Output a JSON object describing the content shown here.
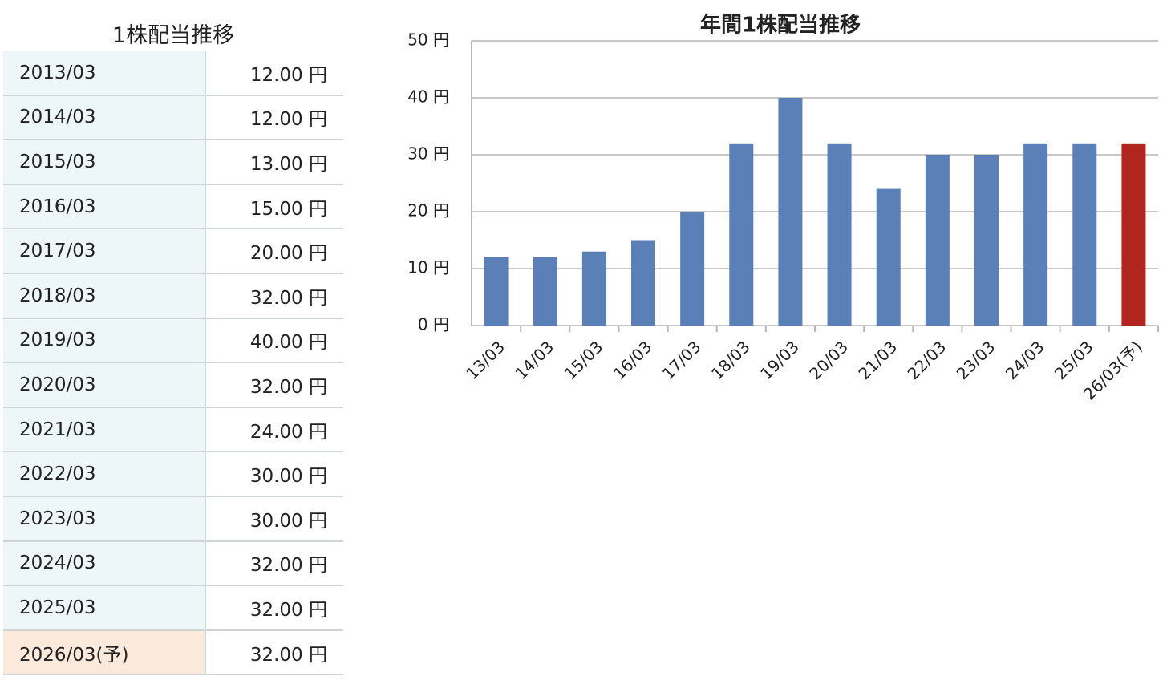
{
  "table": {
    "title": "1株配当推移",
    "rows": [
      [
        "2013/03",
        "12.00 円"
      ],
      [
        "2014/03",
        "12.00 円"
      ],
      [
        "2015/03",
        "13.00 円"
      ],
      [
        "2016/03",
        "15.00 円"
      ],
      [
        "2017/03",
        "20.00 円"
      ],
      [
        "2018/03",
        "32.00 円"
      ],
      [
        "2019/03",
        "40.00 円"
      ],
      [
        "2020/03",
        "32.00 円"
      ],
      [
        "2021/03",
        "24.00 円"
      ],
      [
        "2022/03",
        "30.00 円"
      ],
      [
        "2023/03",
        "30.00 円"
      ],
      [
        "2024/03",
        "32.00 円"
      ],
      [
        "2025/03",
        "32.00 円"
      ],
      [
        "2026/03(予)",
        "32.00 円"
      ]
    ]
  },
  "chart_data": {
    "type": "bar",
    "title": "年間1株配当推移",
    "categories": [
      "13/03",
      "14/03",
      "15/03",
      "16/03",
      "17/03",
      "18/03",
      "19/03",
      "20/03",
      "21/03",
      "22/03",
      "23/03",
      "24/03",
      "25/03",
      "26/03(予)"
    ],
    "values": [
      12,
      12,
      13,
      15,
      20,
      32,
      40,
      32,
      24,
      30,
      30,
      32,
      32,
      32
    ],
    "colors": [
      "#5b7fb7",
      "#5b7fb7",
      "#5b7fb7",
      "#5b7fb7",
      "#5b7fb7",
      "#5b7fb7",
      "#5b7fb7",
      "#5b7fb7",
      "#5b7fb7",
      "#5b7fb7",
      "#5b7fb7",
      "#5b7fb7",
      "#5b7fb7",
      "#b0261e"
    ],
    "ylim": [
      0,
      50
    ],
    "yticks": [
      {
        "value": 0,
        "label": "0 円"
      },
      {
        "value": 10,
        "label": "10 円"
      },
      {
        "value": 20,
        "label": "20 円"
      },
      {
        "value": 30,
        "label": "30 円"
      },
      {
        "value": 40,
        "label": "40 円"
      },
      {
        "value": 50,
        "label": "50 円"
      }
    ],
    "grid": true
  }
}
